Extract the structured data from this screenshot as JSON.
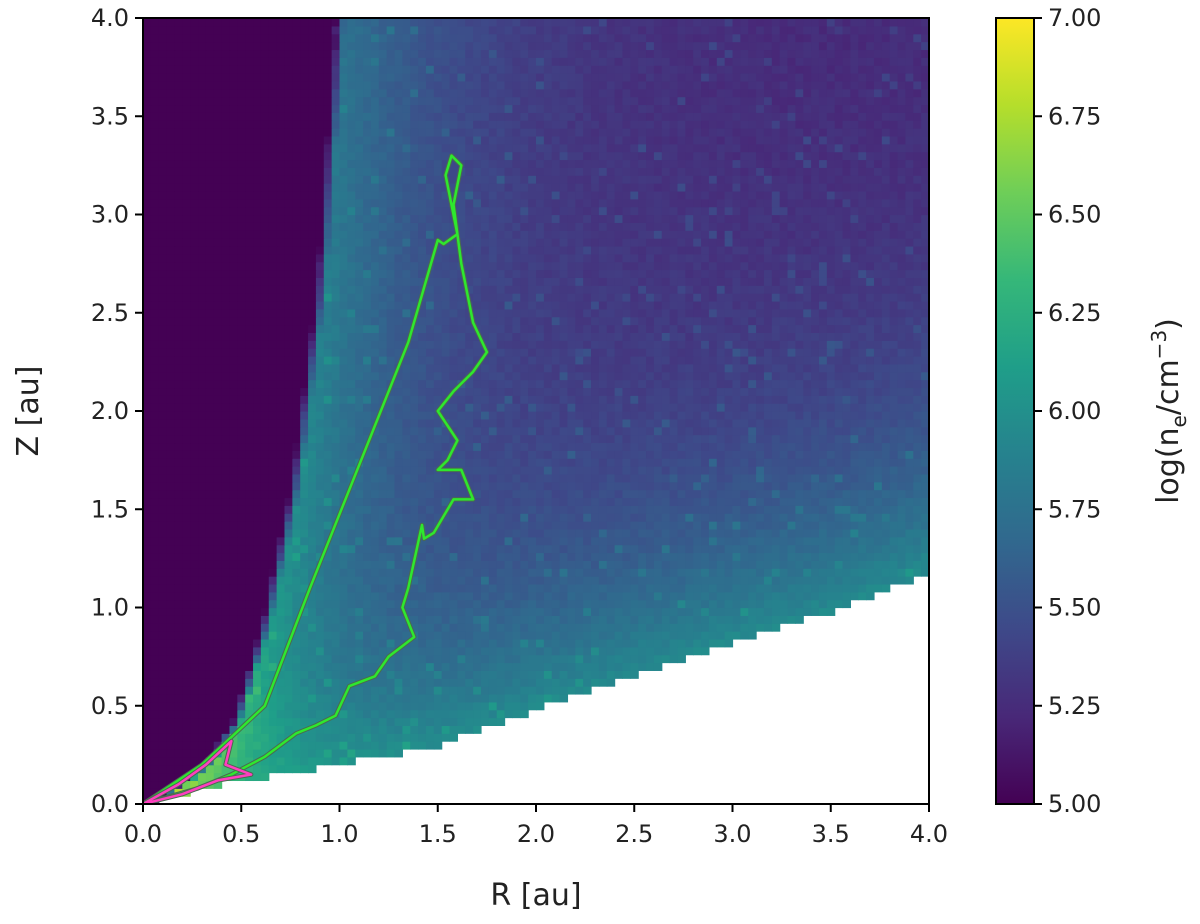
{
  "chart_data": {
    "type": "heatmap",
    "title": "",
    "xlabel": "R [au]",
    "ylabel": "Z [au]",
    "xlim": [
      0.0,
      4.0
    ],
    "ylim": [
      0.0,
      4.0
    ],
    "xticks": [
      "0.0",
      "0.5",
      "1.0",
      "1.5",
      "2.0",
      "2.5",
      "3.0",
      "3.5",
      "4.0"
    ],
    "yticks": [
      "0.0",
      "0.5",
      "1.0",
      "1.5",
      "2.0",
      "2.5",
      "3.0",
      "3.5",
      "4.0"
    ],
    "grid": false,
    "colormap": "viridis",
    "colorbar": {
      "label": "log(n_e/cm^-3)",
      "label_parts": {
        "pre": "log(n",
        "sub": "e",
        "mid": "/cm",
        "sup": "−3",
        "post": ")"
      },
      "range": [
        5.0,
        7.0
      ],
      "ticks": [
        "5.00",
        "5.25",
        "5.50",
        "5.75",
        "6.00",
        "6.25",
        "6.50",
        "6.75",
        "7.00"
      ],
      "colors": [
        "#440154",
        "#482878",
        "#3e4989",
        "#31688e",
        "#26828e",
        "#1f9e89",
        "#35b779",
        "#6ece58",
        "#b5de2b",
        "#fde725"
      ]
    },
    "field_description": {
      "empty_region_boundary": [
        [
          0.0,
          0.0
        ],
        [
          0.5,
          0.12
        ],
        [
          1.0,
          0.2
        ],
        [
          1.5,
          0.3
        ],
        [
          2.0,
          0.48
        ],
        [
          2.5,
          0.65
        ],
        [
          3.0,
          0.82
        ],
        [
          3.5,
          0.98
        ],
        [
          4.0,
          1.18
        ]
      ],
      "low_density_inner_edge": [
        [
          0.02,
          0.0
        ],
        [
          0.15,
          0.08
        ],
        [
          0.3,
          0.2
        ],
        [
          0.45,
          0.4
        ],
        [
          0.6,
          0.9
        ],
        [
          0.75,
          1.6
        ],
        [
          0.88,
          2.6
        ],
        [
          0.98,
          4.0
        ]
      ]
    },
    "contours": [
      {
        "color": "#2ee82e",
        "points": [
          [
            0.0,
            0.0
          ],
          [
            0.3,
            0.2
          ],
          [
            0.62,
            0.5
          ],
          [
            0.85,
            1.1
          ],
          [
            1.15,
            1.85
          ],
          [
            1.35,
            2.35
          ],
          [
            1.5,
            2.87
          ],
          [
            1.53,
            2.85
          ],
          [
            1.6,
            2.9
          ],
          [
            1.57,
            3.05
          ],
          [
            1.54,
            3.2
          ],
          [
            1.57,
            3.3
          ],
          [
            1.62,
            3.25
          ],
          [
            1.58,
            3.05
          ],
          [
            1.62,
            2.75
          ],
          [
            1.68,
            2.45
          ],
          [
            1.75,
            2.3
          ],
          [
            1.68,
            2.2
          ],
          [
            1.58,
            2.1
          ],
          [
            1.5,
            2.0
          ],
          [
            1.6,
            1.85
          ],
          [
            1.55,
            1.75
          ],
          [
            1.5,
            1.7
          ],
          [
            1.62,
            1.7
          ],
          [
            1.68,
            1.55
          ],
          [
            1.58,
            1.55
          ],
          [
            1.48,
            1.38
          ],
          [
            1.43,
            1.35
          ],
          [
            1.42,
            1.42
          ],
          [
            1.35,
            1.1
          ],
          [
            1.32,
            1.0
          ],
          [
            1.38,
            0.85
          ],
          [
            1.25,
            0.75
          ],
          [
            1.18,
            0.65
          ],
          [
            1.05,
            0.6
          ],
          [
            0.98,
            0.45
          ],
          [
            0.88,
            0.4
          ],
          [
            0.78,
            0.36
          ],
          [
            0.62,
            0.24
          ],
          [
            0.45,
            0.15
          ],
          [
            0.28,
            0.08
          ],
          [
            0.0,
            0.0
          ]
        ]
      },
      {
        "color": "#ff3fbf",
        "points": [
          [
            0.0,
            0.0
          ],
          [
            0.18,
            0.1
          ],
          [
            0.32,
            0.2
          ],
          [
            0.45,
            0.32
          ],
          [
            0.42,
            0.2
          ],
          [
            0.55,
            0.15
          ],
          [
            0.38,
            0.12
          ],
          [
            0.2,
            0.05
          ],
          [
            0.0,
            0.0
          ]
        ]
      }
    ]
  }
}
